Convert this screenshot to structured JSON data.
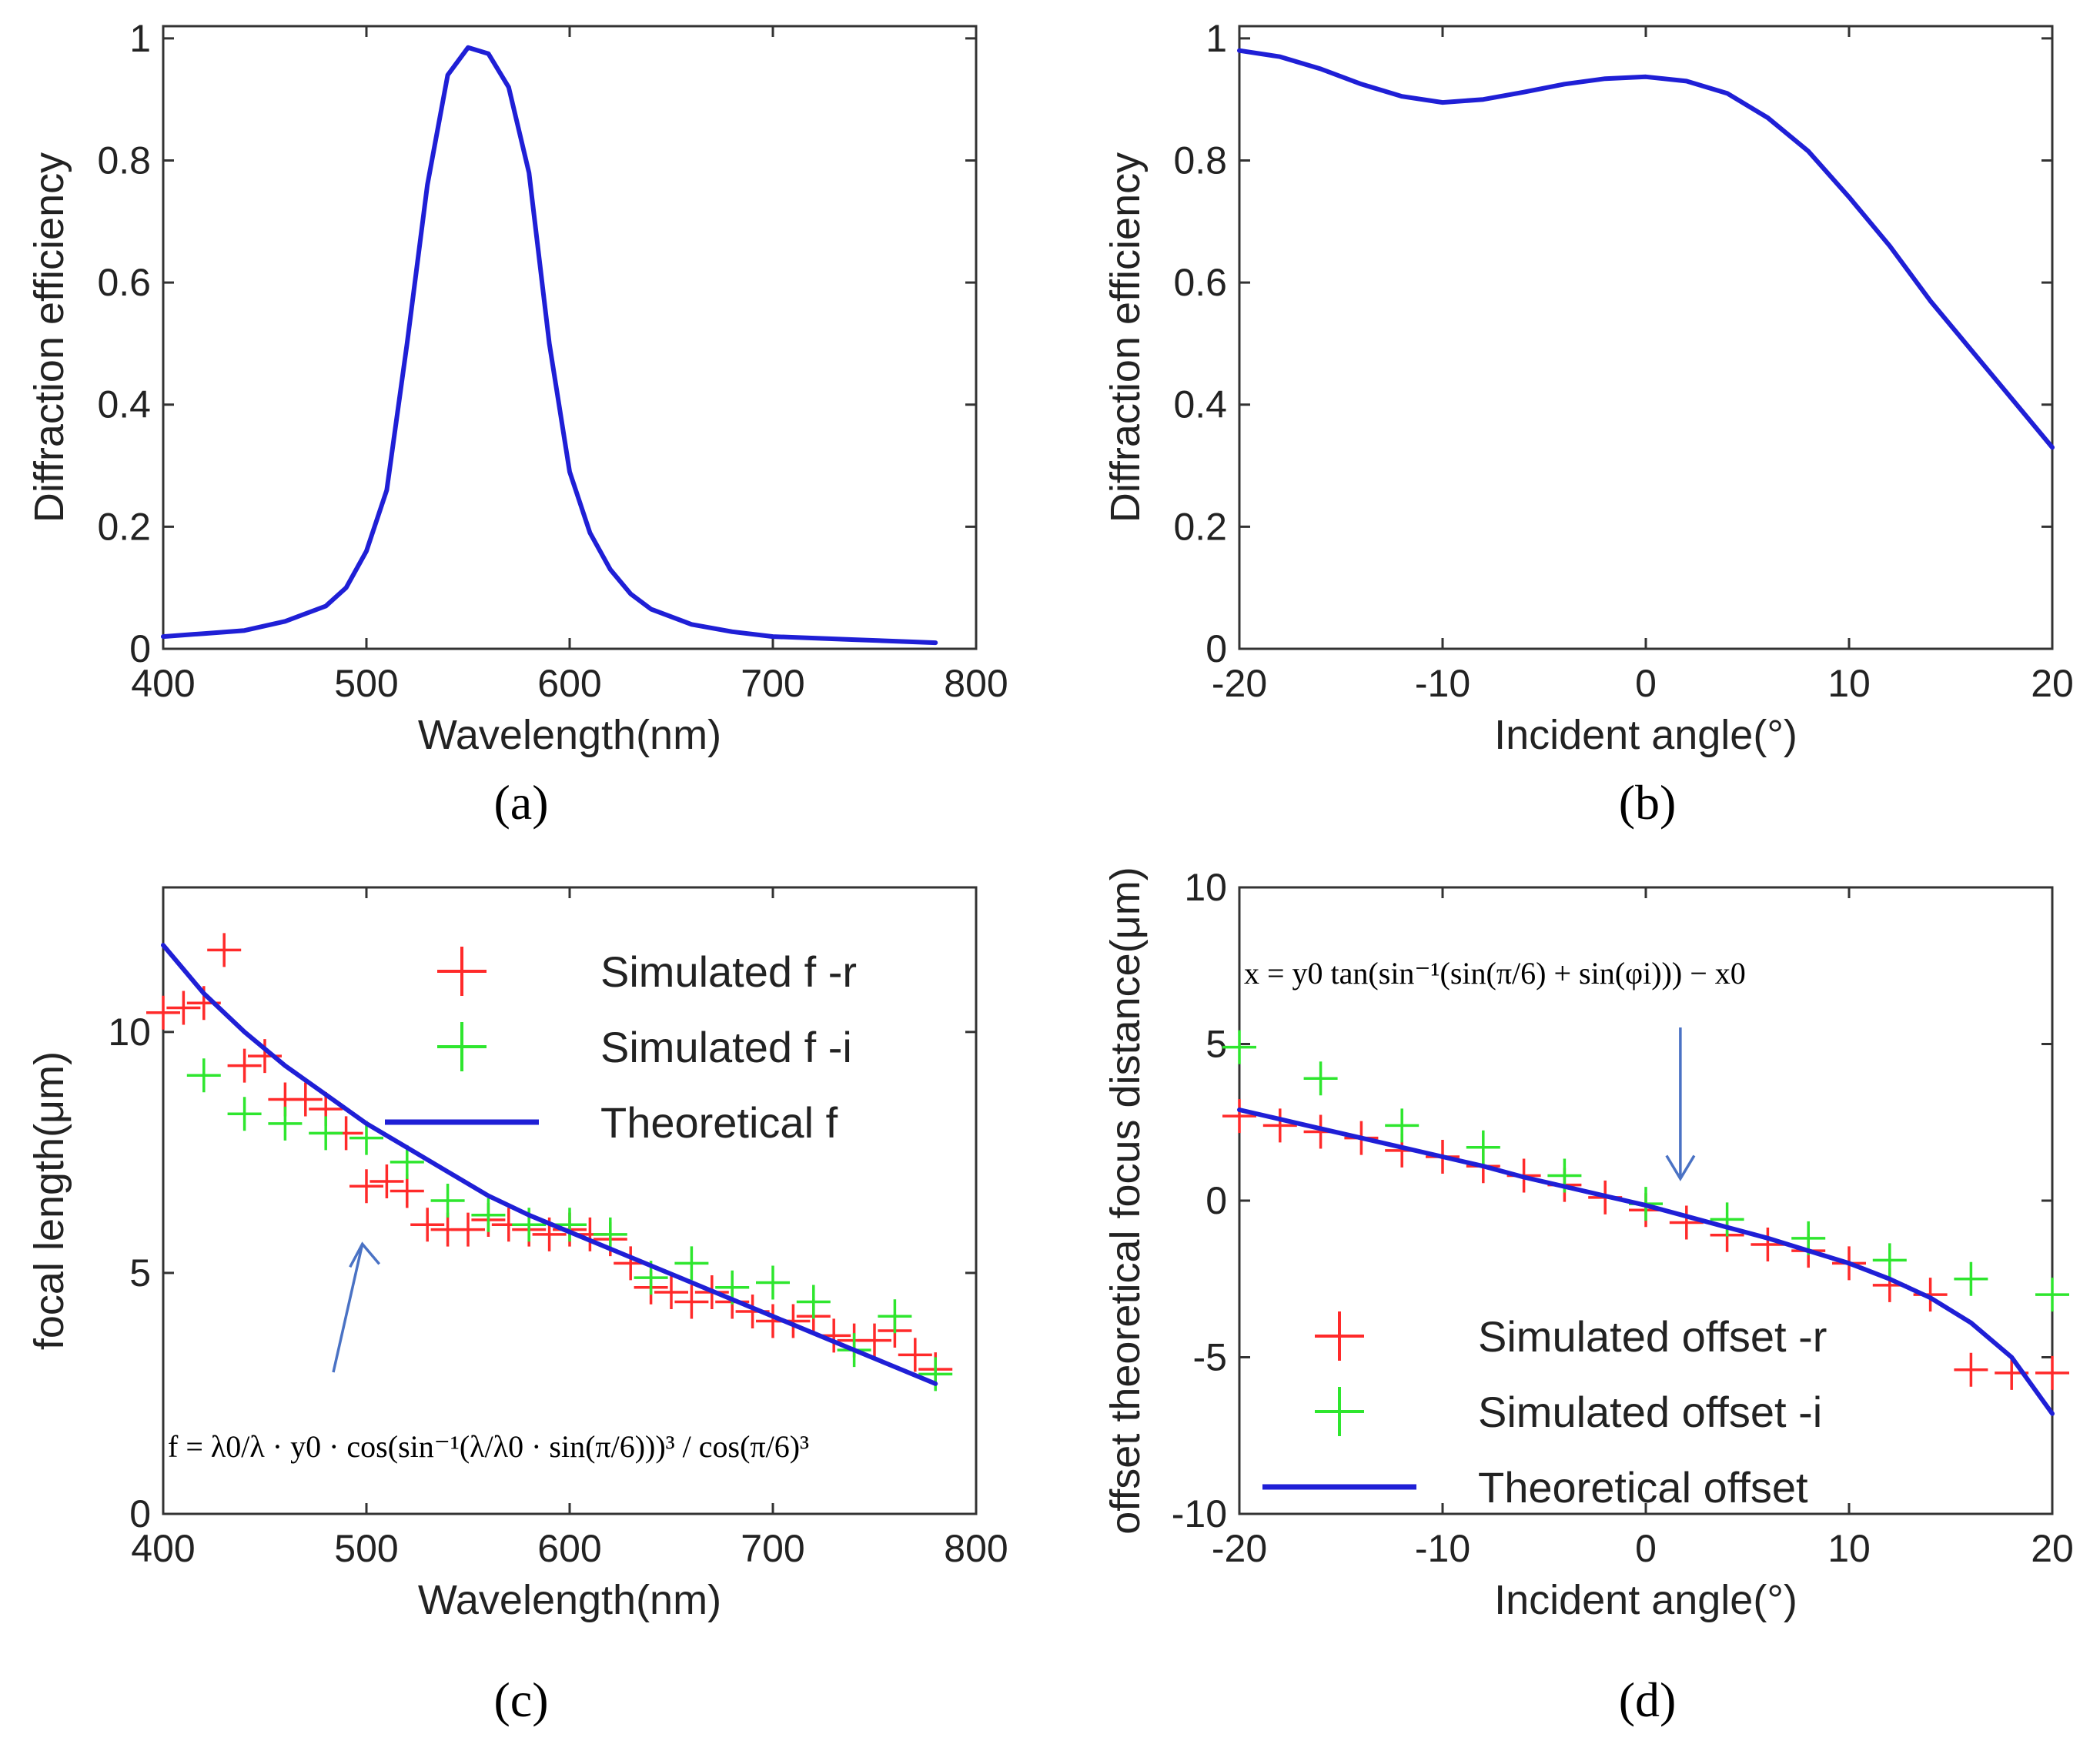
{
  "chart_data": [
    {
      "id": "a",
      "type": "line",
      "panel_label": "(a)",
      "xlabel": "Wavelength(nm)",
      "ylabel": "Diffraction efficiency",
      "xlim": [
        400,
        800
      ],
      "ylim": [
        0,
        1.02
      ],
      "xticks": [
        400,
        500,
        600,
        700,
        800
      ],
      "yticks": [
        0,
        0.2,
        0.4,
        0.6,
        0.8,
        1
      ],
      "ytick_labels": [
        "0",
        "0.2",
        "0.4",
        "0.6",
        "0.8",
        "1"
      ],
      "series": [
        {
          "name": "Diffraction efficiency",
          "color": "#1f1fd6",
          "x": [
            400,
            420,
            440,
            460,
            480,
            490,
            500,
            510,
            520,
            530,
            540,
            550,
            560,
            570,
            580,
            590,
            600,
            610,
            620,
            630,
            640,
            660,
            680,
            700,
            740,
            780
          ],
          "y": [
            0.02,
            0.025,
            0.03,
            0.045,
            0.07,
            0.1,
            0.16,
            0.26,
            0.5,
            0.76,
            0.94,
            0.985,
            0.975,
            0.92,
            0.78,
            0.5,
            0.29,
            0.19,
            0.13,
            0.09,
            0.065,
            0.04,
            0.028,
            0.02,
            0.015,
            0.01
          ]
        }
      ]
    },
    {
      "id": "b",
      "type": "line",
      "panel_label": "(b)",
      "xlabel": "Incident angle(°)",
      "ylabel": "Diffraction efficiency",
      "xlim": [
        -20,
        20
      ],
      "ylim": [
        0,
        1.02
      ],
      "xticks": [
        -20,
        -10,
        0,
        10,
        20
      ],
      "yticks": [
        0,
        0.2,
        0.4,
        0.6,
        0.8,
        1
      ],
      "ytick_labels": [
        "0",
        "0.2",
        "0.4",
        "0.6",
        "0.8",
        "1"
      ],
      "series": [
        {
          "name": "Diffraction efficiency",
          "color": "#1f1fd6",
          "x": [
            -20,
            -18,
            -16,
            -14,
            -12,
            -10,
            -8,
            -6,
            -4,
            -2,
            0,
            2,
            4,
            6,
            8,
            10,
            12,
            14,
            16,
            18,
            20
          ],
          "y": [
            0.98,
            0.97,
            0.95,
            0.925,
            0.905,
            0.895,
            0.9,
            0.912,
            0.925,
            0.934,
            0.937,
            0.93,
            0.91,
            0.87,
            0.815,
            0.74,
            0.66,
            0.57,
            0.49,
            0.41,
            0.33
          ]
        }
      ]
    },
    {
      "id": "c",
      "type": "scatter",
      "panel_label": "(c)",
      "xlabel": "Wavelength(nm)",
      "ylabel": "focal length(μm)",
      "xlim": [
        400,
        800
      ],
      "ylim": [
        0,
        13
      ],
      "xticks": [
        400,
        500,
        600,
        700,
        800
      ],
      "yticks": [
        0,
        5,
        10
      ],
      "ytick_labels": [
        "0",
        "5",
        "10"
      ],
      "legend": [
        {
          "label": "Simulated f -r",
          "marker": "plus",
          "color": "#ff2a2a"
        },
        {
          "label": "Simulated f -i",
          "marker": "plus",
          "color": "#2ee62e"
        },
        {
          "label": "Theoretical f",
          "marker": "line",
          "color": "#1f1fd6"
        }
      ],
      "series": [
        {
          "name": "Simulated f -r",
          "color": "#ff2a2a",
          "marker": "plus",
          "x": [
            400,
            410,
            420,
            430,
            440,
            450,
            460,
            470,
            480,
            490,
            500,
            510,
            520,
            530,
            540,
            550,
            560,
            570,
            580,
            590,
            600,
            610,
            620,
            630,
            640,
            650,
            660,
            670,
            680,
            690,
            700,
            710,
            720,
            730,
            740,
            750,
            760,
            770,
            780
          ],
          "y": [
            10.4,
            10.5,
            10.6,
            11.7,
            9.3,
            9.5,
            8.6,
            8.6,
            8.4,
            7.9,
            6.8,
            6.9,
            6.7,
            6.0,
            5.9,
            5.9,
            6.1,
            6.0,
            5.9,
            5.8,
            5.9,
            5.8,
            5.7,
            5.2,
            4.7,
            4.6,
            4.4,
            4.6,
            4.4,
            4.2,
            4.0,
            4.0,
            4.1,
            3.7,
            3.6,
            3.6,
            3.8,
            3.3,
            3.0
          ]
        },
        {
          "name": "Simulated f -i",
          "color": "#2ee62e",
          "marker": "plus",
          "x": [
            420,
            440,
            460,
            480,
            500,
            520,
            540,
            560,
            580,
            600,
            620,
            640,
            660,
            680,
            700,
            720,
            740,
            760,
            780
          ],
          "y": [
            9.1,
            8.3,
            8.1,
            7.9,
            7.8,
            7.3,
            6.5,
            6.2,
            6.0,
            6.0,
            5.8,
            4.9,
            5.2,
            4.7,
            4.8,
            4.4,
            3.4,
            4.1,
            2.9
          ]
        },
        {
          "name": "Theoretical f",
          "color": "#1f1fd6",
          "marker": "line",
          "x": [
            400,
            420,
            440,
            460,
            480,
            500,
            520,
            540,
            560,
            580,
            600,
            620,
            640,
            660,
            680,
            700,
            720,
            740,
            760,
            780
          ],
          "y": [
            11.8,
            10.8,
            10.0,
            9.3,
            8.7,
            8.1,
            7.6,
            7.1,
            6.6,
            6.2,
            5.85,
            5.5,
            5.15,
            4.8,
            4.45,
            4.1,
            3.75,
            3.4,
            3.05,
            2.7
          ]
        }
      ],
      "annotation": {
        "text": "f = λ0/λ · y0 · cos(sin⁻¹(λ/λ0 · sin(π/6)))³ / cos(π/6)³",
        "arrow_to": [
          498,
          5.6
        ]
      }
    },
    {
      "id": "d",
      "type": "scatter",
      "panel_label": "(d)",
      "xlabel": "Incident angle(°)",
      "ylabel": "offset theoretical focus distance(μm)",
      "xlim": [
        -20,
        20
      ],
      "ylim": [
        -10,
        10
      ],
      "xticks": [
        -20,
        -10,
        0,
        10,
        20
      ],
      "yticks": [
        -10,
        -5,
        0,
        5,
        10
      ],
      "ytick_labels": [
        "-10",
        "-5",
        "0",
        "5",
        "10"
      ],
      "legend": [
        {
          "label": "Simulated offset -r",
          "marker": "plus",
          "color": "#ff2a2a"
        },
        {
          "label": "Simulated offset -i",
          "marker": "plus",
          "color": "#2ee62e"
        },
        {
          "label": "Theoretical offset",
          "marker": "line",
          "color": "#1f1fd6"
        }
      ],
      "series": [
        {
          "name": "Simulated offset -r",
          "color": "#ff2a2a",
          "marker": "plus",
          "x": [
            -20,
            -18,
            -16,
            -14,
            -12,
            -10,
            -8,
            -6,
            -4,
            -2,
            0,
            2,
            4,
            6,
            8,
            10,
            12,
            14,
            16,
            18,
            20
          ],
          "y": [
            2.7,
            2.4,
            2.2,
            2.0,
            1.6,
            1.4,
            1.1,
            0.8,
            0.5,
            0.1,
            -0.3,
            -0.7,
            -1.1,
            -1.4,
            -1.6,
            -2.0,
            -2.7,
            -3.0,
            -5.4,
            -5.5,
            -5.5
          ]
        },
        {
          "name": "Simulated offset -i",
          "color": "#2ee62e",
          "marker": "plus",
          "x": [
            -20,
            -16,
            -12,
            -8,
            -4,
            0,
            4,
            8,
            12,
            16,
            20
          ],
          "y": [
            4.9,
            3.9,
            2.4,
            1.7,
            0.8,
            -0.1,
            -0.6,
            -1.2,
            -1.9,
            -2.5,
            -3.0
          ]
        },
        {
          "name": "Theoretical offset",
          "color": "#1f1fd6",
          "marker": "line",
          "x": [
            -20,
            -18,
            -16,
            -14,
            -12,
            -10,
            -8,
            -6,
            -4,
            -2,
            0,
            2,
            4,
            6,
            8,
            10,
            12,
            14,
            16,
            18,
            20
          ],
          "y": [
            2.9,
            2.6,
            2.3,
            2.0,
            1.7,
            1.4,
            1.1,
            0.75,
            0.45,
            0.15,
            -0.15,
            -0.5,
            -0.85,
            -1.2,
            -1.6,
            -2.0,
            -2.5,
            -3.1,
            -3.9,
            -5.0,
            -6.8
          ]
        }
      ],
      "annotation": {
        "text": "x = y0 tan(sin⁻¹(sin(π/6) + sin(φi))) − x0",
        "arrow_to": [
          1.7,
          0.7
        ]
      }
    }
  ]
}
